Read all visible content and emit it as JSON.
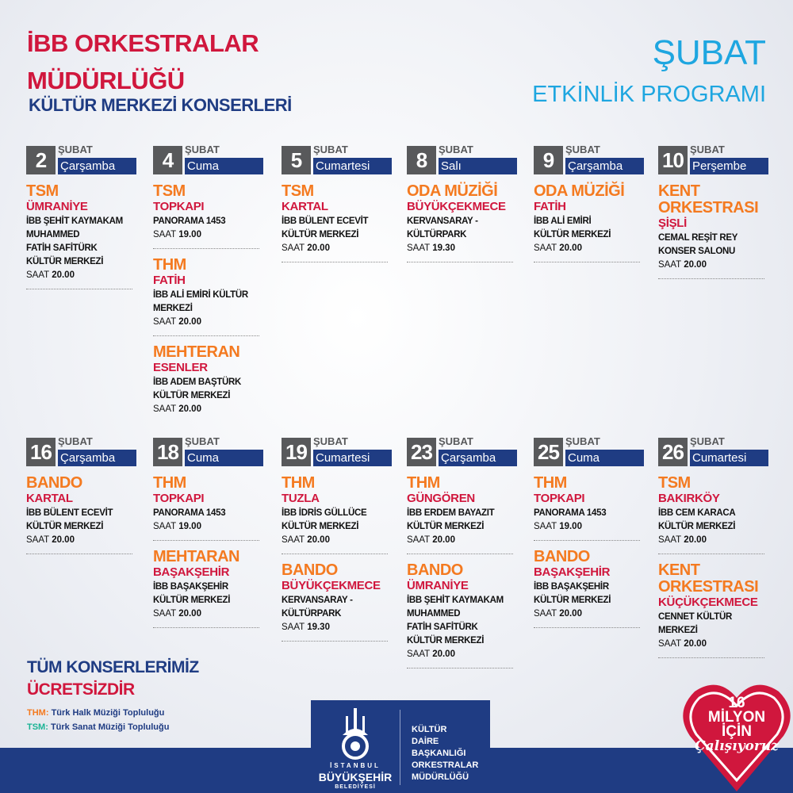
{
  "header": {
    "line1": "İBB ORKESTRALAR",
    "line2": "MÜDÜRLÜĞÜ",
    "line3": "KÜLTÜR MERKEZİ KONSERLERİ",
    "month": "ŞUBAT",
    "program": "ETKİNLİK PROGRAMI"
  },
  "colors": {
    "orange": "#f47a20",
    "crimson": "#d0173d",
    "navy": "#1f3c83",
    "light_blue": "#1ea6e0",
    "gray": "#58595b",
    "teal": "#1ab394"
  },
  "days": [
    {
      "num": "2",
      "month": "ŞUBAT",
      "day": "Çarşamba",
      "events": [
        {
          "title": "TSM",
          "loc": "ÜMRANİYE",
          "venue": [
            "İBB ŞEHİT KAYMAKAM",
            "MUHAMMED",
            "FATİH SAFİTÜRK",
            "KÜLTÜR MERKEZİ"
          ],
          "saat": "SAAT",
          "time": "20.00"
        }
      ]
    },
    {
      "num": "4",
      "month": "ŞUBAT",
      "day": "Cuma",
      "events": [
        {
          "title": "TSM",
          "loc": "TOPKAPI",
          "venue": [
            "PANORAMA 1453"
          ],
          "saat": "SAAT",
          "time": "19.00"
        },
        {
          "title": "THM",
          "loc": "FATİH",
          "venue": [
            "İBB ALİ EMİRİ KÜLTÜR",
            "MERKEZİ"
          ],
          "saat": "SAAT",
          "time": "20.00"
        },
        {
          "title": "MEHTERAN",
          "loc": "ESENLER",
          "venue": [
            "İBB ADEM BAŞTÜRK",
            "KÜLTÜR MERKEZİ"
          ],
          "saat": "SAAT",
          "time": "20.00",
          "nosep": true
        }
      ]
    },
    {
      "num": "5",
      "month": "ŞUBAT",
      "day": "Cumartesi",
      "events": [
        {
          "title": "TSM",
          "loc": "KARTAL",
          "venue": [
            "İBB BÜLENT ECEVİT",
            "KÜLTÜR MERKEZİ"
          ],
          "saat": "SAAT",
          "time": "20.00"
        }
      ]
    },
    {
      "num": "8",
      "month": "ŞUBAT",
      "day": "Salı",
      "events": [
        {
          "title": "ODA MÜZİĞİ",
          "loc": "BÜYÜKÇEKMECE",
          "venue": [
            "KERVANSARAY  -",
            "KÜLTÜRPARK"
          ],
          "saat": "SAAT",
          "time": "19.30"
        }
      ]
    },
    {
      "num": "9",
      "month": "ŞUBAT",
      "day": "Çarşamba",
      "events": [
        {
          "title": "ODA MÜZİĞİ",
          "loc": "FATİH",
          "venue": [
            "İBB ALİ EMİRİ",
            "KÜLTÜR MERKEZİ"
          ],
          "saat": "SAAT",
          "time": "20.00"
        }
      ]
    },
    {
      "num": "10",
      "month": "ŞUBAT",
      "day": "Perşembe",
      "events": [
        {
          "title": "KENT ORKESTRASI",
          "loc": "ŞİŞLİ",
          "venue": [
            "CEMAL REŞİT REY",
            "KONSER SALONU"
          ],
          "saat": "SAAT",
          "time": "20.00"
        }
      ]
    },
    {
      "num": "16",
      "month": "ŞUBAT",
      "day": "Çarşamba",
      "events": [
        {
          "title": "BANDO",
          "loc": "KARTAL",
          "venue": [
            "İBB BÜLENT ECEVİT",
            "KÜLTÜR MERKEZİ"
          ],
          "saat": "SAAT",
          "time": "20.00"
        }
      ]
    },
    {
      "num": "18",
      "month": "ŞUBAT",
      "day": "Cuma",
      "events": [
        {
          "title": "THM",
          "loc": "TOPKAPI",
          "venue": [
            "PANORAMA 1453"
          ],
          "saat": "SAAT",
          "time": "19.00"
        },
        {
          "title": "MEHTARAN",
          "loc": "BAŞAKŞEHİR",
          "venue": [
            "İBB BAŞAKŞEHİR",
            "KÜLTÜR MERKEZİ"
          ],
          "saat": "SAAT",
          "time": "20.00"
        }
      ]
    },
    {
      "num": "19",
      "month": "ŞUBAT",
      "day": "Cumartesi",
      "events": [
        {
          "title": "THM",
          "loc": "TUZLA",
          "venue": [
            "İBB İDRİS GÜLLÜCE",
            "KÜLTÜR MERKEZİ"
          ],
          "saat": "SAAT",
          "time": "20.00"
        },
        {
          "title": "BANDO",
          "loc": "BÜYÜKÇEKMECE",
          "venue": [
            "KERVANSARAY  -",
            "KÜLTÜRPARK"
          ],
          "saat": "SAAT",
          "time": "19.30"
        }
      ]
    },
    {
      "num": "23",
      "month": "ŞUBAT",
      "day": "Çarşamba",
      "events": [
        {
          "title": "THM",
          "loc": "GÜNGÖREN",
          "venue": [
            "İBB ERDEM BAYAZIT",
            "KÜLTÜR MERKEZİ"
          ],
          "saat": "SAAT",
          "time": "20.00"
        },
        {
          "title": "BANDO",
          "loc": "ÜMRANİYE",
          "venue": [
            "İBB ŞEHİT KAYMAKAM",
            "MUHAMMED",
            "FATİH SAFİTÜRK",
            "KÜLTÜR MERKEZİ"
          ],
          "saat": "SAAT",
          "time": "20.00"
        }
      ]
    },
    {
      "num": "25",
      "month": "ŞUBAT",
      "day": "Cuma",
      "events": [
        {
          "title": "THM",
          "loc": "TOPKAPI",
          "venue": [
            "PANORAMA 1453"
          ],
          "saat": "SAAT",
          "time": "19.00"
        },
        {
          "title": "BANDO",
          "loc": "BAŞAKŞEHİR",
          "venue": [
            "İBB BAŞAKŞEHİR",
            "KÜLTÜR MERKEZİ"
          ],
          "saat": "SAAT",
          "time": "20.00"
        }
      ]
    },
    {
      "num": "26",
      "month": "ŞUBAT",
      "day": "Cumartesi",
      "events": [
        {
          "title": "TSM",
          "loc": "BAKIRKÖY",
          "venue": [
            "İBB CEM KARACA",
            "KÜLTÜR MERKEZİ"
          ],
          "saat": "SAAT",
          "time": "20.00"
        },
        {
          "title": "KENT ORKESTRASI",
          "loc": "KÜÇÜKÇEKMECE",
          "venue": [
            "CENNET KÜLTÜR",
            "MERKEZİ"
          ],
          "saat": "SAAT",
          "time": "20.00"
        }
      ]
    }
  ],
  "footer": {
    "free1": "TÜM KONSERLERİMİZ",
    "free2": "ÜCRETSİZDİR",
    "legend": [
      {
        "abbr": "THM:",
        "text": "Türk Halk Müziği Topluluğu"
      },
      {
        "abbr": "TSM:",
        "text": "Türk Sanat Müziği Topluluğu"
      }
    ],
    "logo": {
      "city1": "İSTANBUL",
      "city2": "BÜYÜKŞEHİR",
      "city3": "BELEDİYESİ",
      "dept": [
        "KÜLTÜR",
        "DAİRE",
        "BAŞKANLIĞI",
        "ORKESTRALAR",
        "MÜDÜRLÜĞÜ"
      ]
    },
    "heart": {
      "l1": "16",
      "l2": "MİLYON",
      "l3": "İÇİN",
      "l4": "Çalışıyoruz"
    }
  }
}
